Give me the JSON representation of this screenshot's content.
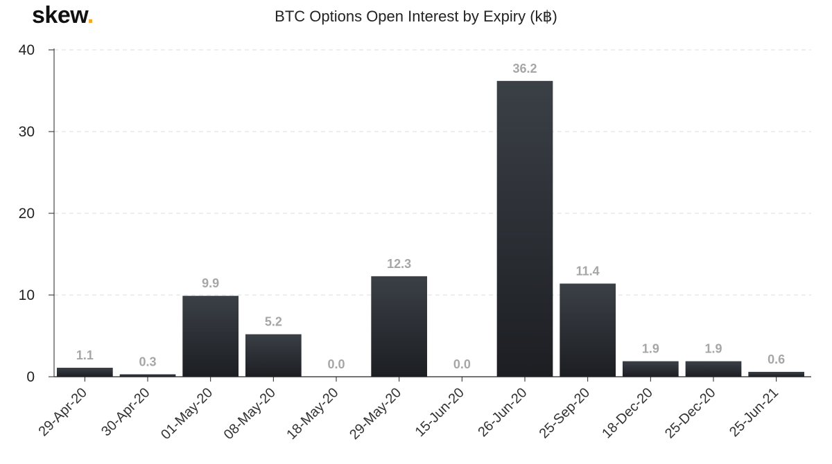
{
  "logo": {
    "text": "skew",
    "dot": "."
  },
  "chart_data": {
    "type": "bar",
    "title": "BTC Options Open Interest by Expiry (k฿)",
    "xlabel": "",
    "ylabel": "",
    "categories": [
      "29-Apr-20",
      "30-Apr-20",
      "01-May-20",
      "08-May-20",
      "18-May-20",
      "29-May-20",
      "15-Jun-20",
      "26-Jun-20",
      "25-Sep-20",
      "18-Dec-20",
      "25-Dec-20",
      "25-Jun-21"
    ],
    "values": [
      1.1,
      0.3,
      9.9,
      5.2,
      0.0,
      12.3,
      0.0,
      36.2,
      11.4,
      1.9,
      1.9,
      0.6
    ],
    "data_labels": [
      "1.1",
      "0.3",
      "9.9",
      "5.2",
      "0.0",
      "12.3",
      "0.0",
      "36.2",
      "11.4",
      "1.9",
      "1.9",
      "0.6"
    ],
    "yticks": [
      "0",
      "10",
      "20",
      "30",
      "40"
    ],
    "ylim": [
      0,
      40
    ],
    "grid": true,
    "colors": {
      "bar_top": "#3b4047",
      "bar_bottom": "#1c1e22",
      "label": "#a6a6a6",
      "grid": "#dddddd"
    }
  }
}
